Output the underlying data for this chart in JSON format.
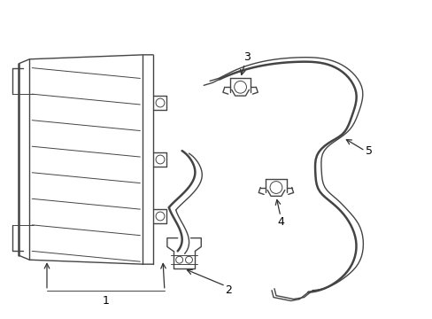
{
  "background": "#ffffff",
  "line_color": "#444444",
  "lw": 1.0,
  "lw_thick": 1.8,
  "lw_thin": 0.7,
  "label_fontsize": 9,
  "arrow_color": "#333333"
}
